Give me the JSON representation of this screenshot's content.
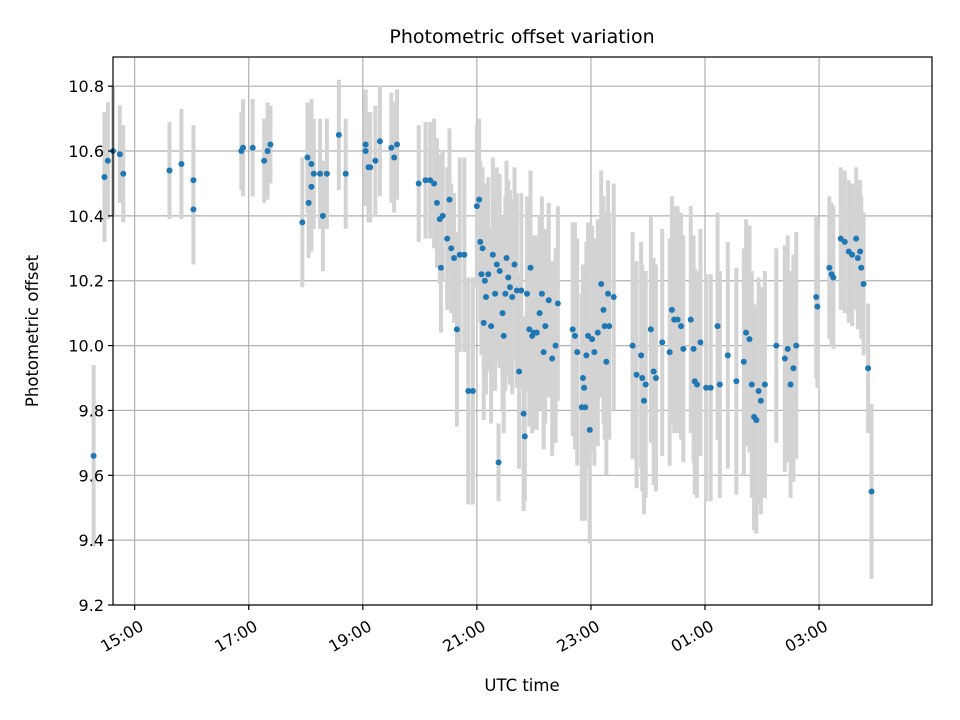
{
  "chart_data": {
    "type": "scatter",
    "title": "Photometric offset variation",
    "xlabel": "UTC time",
    "ylabel": "Photometric offset",
    "x_unit": "hours, continuous from 14:00 day 1 (values above 24 are after midnight)",
    "xlim": [
      14.62,
      28.98
    ],
    "ylim": [
      9.2,
      10.89
    ],
    "x_ticks": [
      {
        "value": 15,
        "label": "15:00"
      },
      {
        "value": 17,
        "label": "17:00"
      },
      {
        "value": 19,
        "label": "19:00"
      },
      {
        "value": 21,
        "label": "21:00"
      },
      {
        "value": 23,
        "label": "23:00"
      },
      {
        "value": 25,
        "label": "01:00"
      },
      {
        "value": 27,
        "label": "03:00"
      }
    ],
    "y_ticks": [
      9.2,
      9.4,
      9.6,
      9.8,
      10.0,
      10.2,
      10.4,
      10.6,
      10.8
    ],
    "grid": true,
    "colors": {
      "points": "#1f77b4",
      "errorbars": "#d3d3d3",
      "grid": "#b0b0b0"
    },
    "series": [
      {
        "points": [
          [
            14.28,
            9.66,
            0.28
          ],
          [
            14.47,
            10.52,
            0.2
          ],
          [
            14.53,
            10.57,
            0.18
          ],
          [
            14.62,
            10.6,
            0.2
          ],
          [
            14.74,
            10.59,
            0.15
          ],
          [
            14.8,
            10.53,
            0.15
          ],
          [
            15.61,
            10.54,
            0.15
          ],
          [
            15.82,
            10.56,
            0.17
          ],
          [
            16.03,
            10.42,
            0.17
          ],
          [
            16.03,
            10.51,
            0.17
          ],
          [
            16.87,
            10.6,
            0.12
          ],
          [
            16.9,
            10.61,
            0.15
          ],
          [
            17.07,
            10.61,
            0.15
          ],
          [
            17.27,
            10.57,
            0.13
          ],
          [
            17.33,
            10.6,
            0.15
          ],
          [
            17.38,
            10.62,
            0.12
          ],
          [
            17.94,
            10.38,
            0.2
          ],
          [
            18.03,
            10.58,
            0.17
          ],
          [
            18.05,
            10.44,
            0.17
          ],
          [
            18.1,
            10.56,
            0.2
          ],
          [
            18.1,
            10.49,
            0.2
          ],
          [
            18.14,
            10.53,
            0.17
          ],
          [
            18.25,
            10.53,
            0.17
          ],
          [
            18.3,
            10.4,
            0.17
          ],
          [
            18.37,
            10.53,
            0.17
          ],
          [
            18.58,
            10.65,
            0.17
          ],
          [
            18.7,
            10.53,
            0.17
          ],
          [
            19.05,
            10.62,
            0.17
          ],
          [
            19.05,
            10.6,
            0.17
          ],
          [
            19.1,
            10.55,
            0.17
          ],
          [
            19.13,
            10.55,
            0.17
          ],
          [
            19.22,
            10.57,
            0.17
          ],
          [
            19.3,
            10.63,
            0.17
          ],
          [
            19.5,
            10.61,
            0.17
          ],
          [
            19.55,
            10.58,
            0.17
          ],
          [
            19.6,
            10.62,
            0.17
          ],
          [
            19.98,
            10.5,
            0.18
          ],
          [
            20.1,
            10.51,
            0.18
          ],
          [
            20.18,
            10.51,
            0.18
          ],
          [
            20.25,
            10.5,
            0.2
          ],
          [
            20.3,
            10.44,
            0.2
          ],
          [
            20.35,
            10.39,
            0.2
          ],
          [
            20.37,
            10.24,
            0.2
          ],
          [
            20.4,
            10.4,
            0.2
          ],
          [
            20.48,
            10.33,
            0.22
          ],
          [
            20.52,
            10.45,
            0.22
          ],
          [
            20.55,
            10.3,
            0.2
          ],
          [
            20.6,
            10.27,
            0.2
          ],
          [
            20.65,
            10.05,
            0.3
          ],
          [
            20.7,
            10.28,
            0.3
          ],
          [
            20.78,
            10.28,
            0.3
          ],
          [
            20.85,
            9.86,
            0.35
          ],
          [
            20.93,
            9.86,
            0.35
          ],
          [
            21.0,
            10.43,
            0.25
          ],
          [
            21.04,
            10.45,
            0.25
          ],
          [
            21.06,
            10.32,
            0.25
          ],
          [
            21.08,
            10.22,
            0.25
          ],
          [
            21.1,
            10.3,
            0.25
          ],
          [
            21.12,
            10.07,
            0.3
          ],
          [
            21.14,
            10.2,
            0.3
          ],
          [
            21.16,
            10.15,
            0.3
          ],
          [
            21.2,
            10.22,
            0.3
          ],
          [
            21.25,
            10.06,
            0.3
          ],
          [
            21.28,
            10.28,
            0.3
          ],
          [
            21.32,
            10.16,
            0.3
          ],
          [
            21.35,
            10.25,
            0.3
          ],
          [
            21.38,
            9.64,
            0.12
          ],
          [
            21.4,
            10.23,
            0.3
          ],
          [
            21.45,
            10.1,
            0.3
          ],
          [
            21.47,
            10.03,
            0.3
          ],
          [
            21.5,
            10.16,
            0.3
          ],
          [
            21.52,
            10.27,
            0.3
          ],
          [
            21.55,
            10.21,
            0.3
          ],
          [
            21.58,
            10.18,
            0.3
          ],
          [
            21.62,
            10.15,
            0.3
          ],
          [
            21.66,
            10.25,
            0.3
          ],
          [
            21.7,
            10.17,
            0.3
          ],
          [
            21.74,
            9.92,
            0.3
          ],
          [
            21.78,
            10.17,
            0.3
          ],
          [
            21.82,
            9.79,
            0.3
          ],
          [
            21.84,
            9.72,
            0.2
          ],
          [
            21.88,
            10.16,
            0.3
          ],
          [
            21.92,
            10.05,
            0.3
          ],
          [
            21.94,
            10.24,
            0.3
          ],
          [
            21.97,
            10.03,
            0.3
          ],
          [
            22.0,
            10.04,
            0.3
          ],
          [
            22.05,
            10.04,
            0.3
          ],
          [
            22.1,
            10.1,
            0.3
          ],
          [
            22.14,
            10.16,
            0.3
          ],
          [
            22.17,
            9.98,
            0.3
          ],
          [
            22.2,
            10.06,
            0.3
          ],
          [
            22.26,
            10.14,
            0.3
          ],
          [
            22.32,
            9.96,
            0.3
          ],
          [
            22.38,
            10.0,
            0.3
          ],
          [
            22.42,
            10.13,
            0.3
          ],
          [
            22.68,
            10.05,
            0.33
          ],
          [
            22.72,
            10.03,
            0.35
          ],
          [
            22.76,
            9.98,
            0.35
          ],
          [
            22.84,
            9.81,
            0.35
          ],
          [
            22.86,
            9.9,
            0.35
          ],
          [
            22.88,
            9.87,
            0.35
          ],
          [
            22.9,
            9.81,
            0.35
          ],
          [
            22.92,
            9.97,
            0.35
          ],
          [
            22.95,
            10.03,
            0.35
          ],
          [
            22.98,
            9.74,
            0.35
          ],
          [
            23.02,
            10.02,
            0.35
          ],
          [
            23.06,
            9.98,
            0.35
          ],
          [
            23.12,
            10.04,
            0.35
          ],
          [
            23.18,
            10.19,
            0.35
          ],
          [
            23.22,
            10.11,
            0.35
          ],
          [
            23.24,
            10.06,
            0.35
          ],
          [
            23.27,
            9.95,
            0.35
          ],
          [
            23.3,
            10.16,
            0.35
          ],
          [
            23.32,
            10.06,
            0.35
          ],
          [
            23.4,
            10.15,
            0.35
          ],
          [
            23.73,
            10.0,
            0.35
          ],
          [
            23.8,
            9.91,
            0.35
          ],
          [
            23.88,
            9.97,
            0.35
          ],
          [
            23.9,
            9.9,
            0.35
          ],
          [
            23.93,
            9.83,
            0.35
          ],
          [
            23.96,
            9.88,
            0.35
          ],
          [
            24.05,
            10.05,
            0.35
          ],
          [
            24.1,
            9.92,
            0.35
          ],
          [
            24.14,
            9.9,
            0.35
          ],
          [
            24.25,
            10.01,
            0.35
          ],
          [
            24.38,
            9.98,
            0.35
          ],
          [
            24.42,
            10.11,
            0.35
          ],
          [
            24.46,
            10.08,
            0.35
          ],
          [
            24.52,
            10.08,
            0.35
          ],
          [
            24.58,
            10.06,
            0.35
          ],
          [
            24.62,
            9.99,
            0.35
          ],
          [
            24.75,
            10.08,
            0.35
          ],
          [
            24.8,
            9.99,
            0.35
          ],
          [
            24.82,
            9.89,
            0.35
          ],
          [
            24.86,
            9.88,
            0.35
          ],
          [
            24.92,
            10.01,
            0.35
          ],
          [
            25.02,
            9.87,
            0.35
          ],
          [
            25.1,
            9.87,
            0.35
          ],
          [
            25.22,
            10.06,
            0.35
          ],
          [
            25.26,
            9.88,
            0.35
          ],
          [
            25.4,
            9.97,
            0.35
          ],
          [
            25.55,
            9.89,
            0.35
          ],
          [
            25.68,
            9.95,
            0.35
          ],
          [
            25.72,
            10.04,
            0.35
          ],
          [
            25.78,
            10.02,
            0.35
          ],
          [
            25.82,
            9.88,
            0.35
          ],
          [
            25.86,
            9.78,
            0.35
          ],
          [
            25.9,
            9.77,
            0.35
          ],
          [
            25.94,
            9.86,
            0.35
          ],
          [
            25.98,
            9.83,
            0.35
          ],
          [
            26.05,
            9.88,
            0.35
          ],
          [
            26.25,
            10.0,
            0.3
          ],
          [
            26.4,
            9.96,
            0.35
          ],
          [
            26.45,
            9.99,
            0.35
          ],
          [
            26.5,
            9.88,
            0.35
          ],
          [
            26.55,
            9.93,
            0.35
          ],
          [
            26.6,
            10.0,
            0.35
          ],
          [
            26.95,
            10.15,
            0.25
          ],
          [
            26.97,
            10.12,
            0.25
          ],
          [
            27.18,
            10.24,
            0.22
          ],
          [
            27.22,
            10.22,
            0.22
          ],
          [
            27.25,
            10.21,
            0.22
          ],
          [
            27.38,
            10.33,
            0.22
          ],
          [
            27.45,
            10.32,
            0.22
          ],
          [
            27.52,
            10.29,
            0.22
          ],
          [
            27.58,
            10.28,
            0.22
          ],
          [
            27.65,
            10.33,
            0.22
          ],
          [
            27.68,
            10.27,
            0.22
          ],
          [
            27.72,
            10.29,
            0.22
          ],
          [
            27.74,
            10.24,
            0.22
          ],
          [
            27.78,
            10.19,
            0.22
          ],
          [
            27.86,
            9.93,
            0.2
          ],
          [
            27.92,
            9.55,
            0.27
          ]
        ]
      }
    ]
  }
}
